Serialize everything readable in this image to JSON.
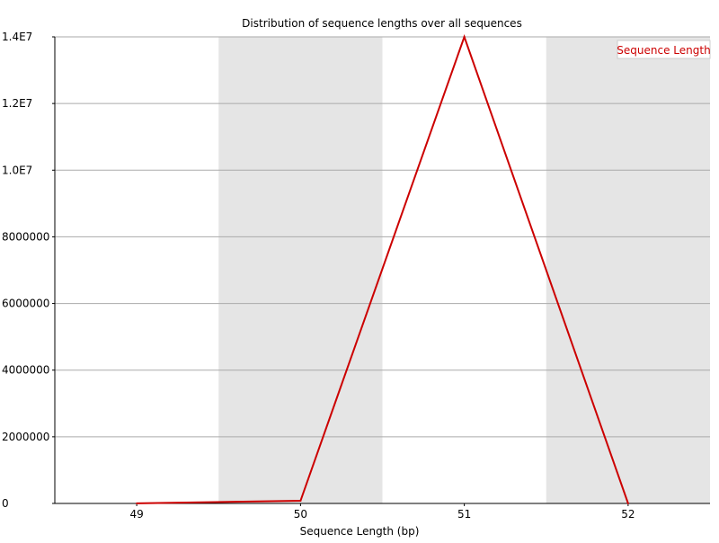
{
  "chart_data": {
    "type": "line",
    "title": "Distribution of sequence lengths over all sequences",
    "xlabel": "Sequence Length (bp)",
    "ylabel": "",
    "categories": [
      "49",
      "50",
      "51",
      "52"
    ],
    "y_ticks": [
      {
        "value": 0,
        "label": "0"
      },
      {
        "value": 2000000,
        "label": "2000000"
      },
      {
        "value": 4000000,
        "label": "4000000"
      },
      {
        "value": 6000000,
        "label": "6000000"
      },
      {
        "value": 8000000,
        "label": "8000000"
      },
      {
        "value": 10000000,
        "label": "1.0E7"
      },
      {
        "value": 12000000,
        "label": "1.2E7"
      },
      {
        "value": 14000000,
        "label": "1.4E7"
      }
    ],
    "ylim": [
      0,
      14000000
    ],
    "series": [
      {
        "name": "Sequence Length",
        "color": "#cc0000",
        "values": [
          3000,
          80000,
          14000000,
          0
        ]
      }
    ],
    "legend_position": "top-right",
    "grid": true,
    "band_color": "#e5e5e5",
    "grid_color": "#aaaaaa",
    "axis_color": "#000000"
  }
}
